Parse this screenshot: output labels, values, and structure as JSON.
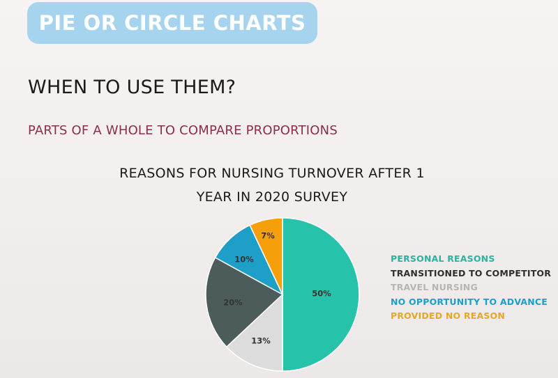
{
  "header": {
    "title": "PIE OR CIRCLE CHARTS"
  },
  "heading": "WHEN TO USE THEM?",
  "subheading": "PARTS OF A WHOLE TO COMPARE PROPORTIONS",
  "colors": {
    "header_bg": "#a6d4ef",
    "subheading": "#8a2f45"
  },
  "chart_data": {
    "type": "pie",
    "title_lines": [
      "REASONS FOR NURSING TURNOVER AFTER 1",
      "YEAR IN 2020 SURVEY"
    ],
    "slices": [
      {
        "label": "PERSONAL REASONS",
        "value": 50,
        "value_label": "50%",
        "color": "#27c2aa",
        "legend_color": "#2ab3a0"
      },
      {
        "label": "TRANSITIONED TO COMPETITOR",
        "value": 13,
        "value_label": "13%",
        "color": "#dcdcdc",
        "legend_color": "#2e2e2e"
      },
      {
        "label": "TRAVEL NURSING",
        "value": 20,
        "value_label": "20%",
        "color": "#4c5c5b",
        "legend_color": "#b5b5b5"
      },
      {
        "label": "NO OPPORTUNITY TO ADVANCE",
        "value": 10,
        "value_label": "10%",
        "color": "#1d9fc8",
        "legend_color": "#1d9fc8"
      },
      {
        "label": "PROVIDED NO REASON",
        "value": 7,
        "value_label": "7%",
        "color": "#f5a00b",
        "legend_color": "#e3a82a"
      }
    ],
    "legend_position": "right"
  }
}
